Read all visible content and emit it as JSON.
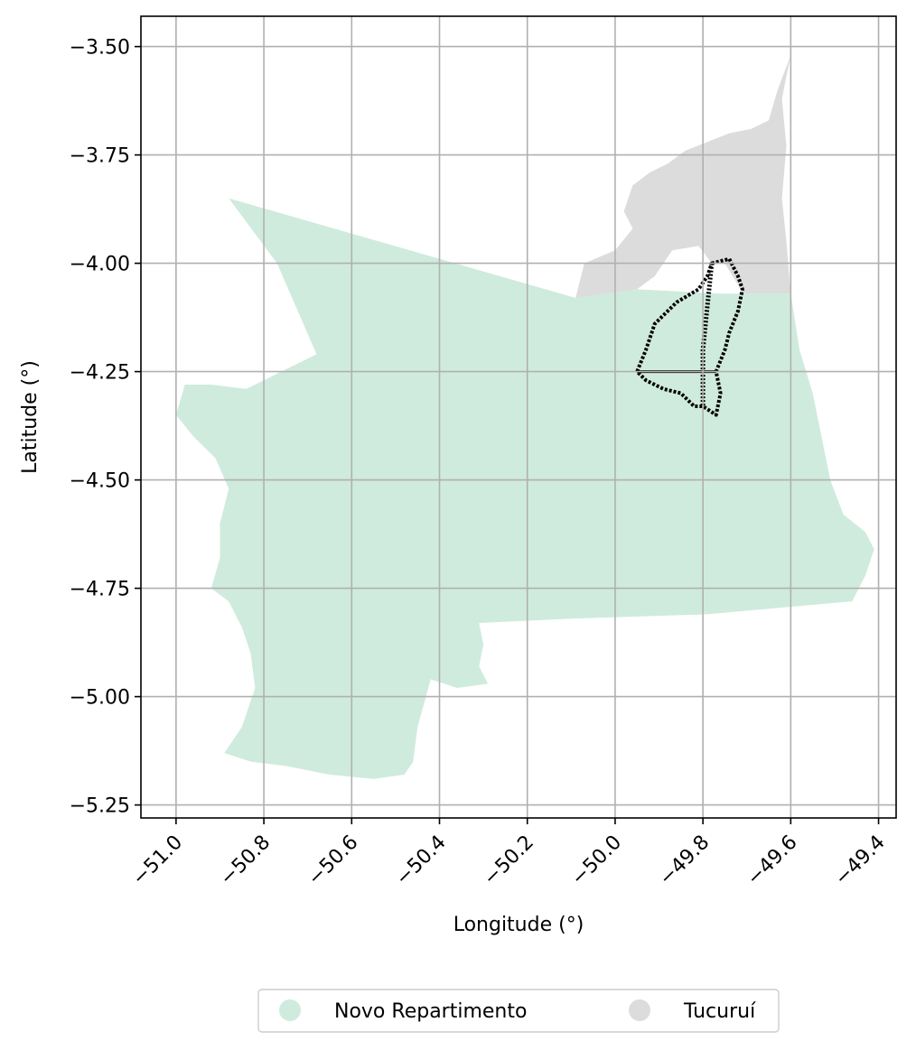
{
  "chart_data": {
    "type": "map",
    "xlabel": "Longitude (°)",
    "ylabel": "Latitude (°)",
    "xlim": [
      -51.08,
      -49.36
    ],
    "ylim": [
      -5.28,
      -3.43
    ],
    "x_ticks": [
      -51.0,
      -50.8,
      -50.6,
      -50.4,
      -50.2,
      -50.0,
      -49.8,
      -49.6,
      -49.4
    ],
    "x_tick_labels": [
      "−51.0",
      "−50.8",
      "−50.6",
      "−50.4",
      "−50.2",
      "−50.0",
      "−49.8",
      "−49.6",
      "−49.4"
    ],
    "y_ticks": [
      -3.5,
      -3.75,
      -4.0,
      -4.25,
      -4.5,
      -4.75,
      -5.0,
      -5.25
    ],
    "y_tick_labels": [
      "−3.50",
      "−3.75",
      "−4.00",
      "−4.25",
      "−4.50",
      "−4.75",
      "−5.00",
      "−5.25"
    ],
    "grid": true,
    "legend_position": "bottom-center",
    "regions": [
      {
        "name": "Novo Repartimento",
        "color": "#cfebdd",
        "polygon": [
          [
            -50.88,
            -3.85
          ],
          [
            -50.09,
            -4.08
          ],
          [
            -49.95,
            -4.06
          ],
          [
            -49.76,
            -4.07
          ],
          [
            -49.6,
            -4.07
          ],
          [
            -49.58,
            -4.2
          ],
          [
            -49.55,
            -4.3
          ],
          [
            -49.53,
            -4.4
          ],
          [
            -49.51,
            -4.5
          ],
          [
            -49.48,
            -4.58
          ],
          [
            -49.43,
            -4.62
          ],
          [
            -49.41,
            -4.66
          ],
          [
            -49.43,
            -4.72
          ],
          [
            -49.46,
            -4.78
          ],
          [
            -49.79,
            -4.81
          ],
          [
            -50.1,
            -4.82
          ],
          [
            -50.31,
            -4.83
          ],
          [
            -50.3,
            -4.88
          ],
          [
            -50.31,
            -4.93
          ],
          [
            -50.29,
            -4.97
          ],
          [
            -50.36,
            -4.98
          ],
          [
            -50.42,
            -4.96
          ],
          [
            -50.45,
            -5.07
          ],
          [
            -50.46,
            -5.15
          ],
          [
            -50.48,
            -5.18
          ],
          [
            -50.55,
            -5.19
          ],
          [
            -50.65,
            -5.18
          ],
          [
            -50.75,
            -5.16
          ],
          [
            -50.83,
            -5.15
          ],
          [
            -50.89,
            -5.13
          ],
          [
            -50.85,
            -5.07
          ],
          [
            -50.82,
            -4.98
          ],
          [
            -50.83,
            -4.9
          ],
          [
            -50.85,
            -4.84
          ],
          [
            -50.88,
            -4.78
          ],
          [
            -50.92,
            -4.75
          ],
          [
            -50.9,
            -4.68
          ],
          [
            -50.9,
            -4.6
          ],
          [
            -50.88,
            -4.52
          ],
          [
            -50.91,
            -4.45
          ],
          [
            -50.96,
            -4.4
          ],
          [
            -51.0,
            -4.35
          ],
          [
            -50.98,
            -4.28
          ],
          [
            -50.92,
            -4.28
          ],
          [
            -50.84,
            -4.29
          ],
          [
            -50.78,
            -4.26
          ],
          [
            -50.72,
            -4.23
          ],
          [
            -50.68,
            -4.21
          ],
          [
            -50.77,
            -4.0
          ]
        ]
      },
      {
        "name": "Tucuruí",
        "color": "#dcdcdc",
        "polygon": [
          [
            -49.6,
            -3.52
          ],
          [
            -49.63,
            -3.6
          ],
          [
            -49.65,
            -3.67
          ],
          [
            -49.69,
            -3.69
          ],
          [
            -49.74,
            -3.7
          ],
          [
            -49.77,
            -3.74
          ],
          [
            -49.82,
            -3.74
          ],
          [
            -49.88,
            -3.77
          ],
          [
            -49.92,
            -3.8
          ],
          [
            -49.92,
            -3.86
          ],
          [
            -49.88,
            -3.93
          ],
          [
            -49.87,
            -3.97
          ],
          [
            -49.81,
            -3.96
          ],
          [
            -49.78,
            -4.0
          ],
          [
            -49.75,
            -4.0
          ],
          [
            -49.72,
            -4.05
          ],
          [
            -49.71,
            -4.07
          ],
          [
            -49.6,
            -4.07
          ],
          [
            -49.61,
            -3.95
          ],
          [
            -49.62,
            -3.85
          ],
          [
            -49.61,
            -3.73
          ],
          [
            -49.62,
            -3.62
          ]
        ]
      },
      {
        "name": "",
        "color": "#dcdcdc",
        "polygon": [
          [
            -49.74,
            -3.7
          ],
          [
            -49.79,
            -3.72
          ],
          [
            -49.84,
            -3.74
          ],
          [
            -49.88,
            -3.77
          ],
          [
            -49.92,
            -3.79
          ],
          [
            -49.96,
            -3.82
          ],
          [
            -49.98,
            -3.88
          ],
          [
            -49.96,
            -3.92
          ],
          [
            -50.0,
            -3.97
          ],
          [
            -50.07,
            -4.0
          ],
          [
            -50.09,
            -4.08
          ],
          [
            -50.02,
            -4.07
          ],
          [
            -49.95,
            -4.06
          ],
          [
            -49.91,
            -4.03
          ],
          [
            -49.87,
            -3.97
          ]
        ]
      }
    ],
    "overlay_outline": {
      "color": "#000000",
      "polygon": [
        [
          -49.78,
          -4.0
        ],
        [
          -49.74,
          -3.99
        ],
        [
          -49.72,
          -4.03
        ],
        [
          -49.71,
          -4.06
        ],
        [
          -49.72,
          -4.11
        ],
        [
          -49.74,
          -4.16
        ],
        [
          -49.75,
          -4.2
        ],
        [
          -49.77,
          -4.25
        ],
        [
          -49.76,
          -4.3
        ],
        [
          -49.77,
          -4.35
        ],
        [
          -49.8,
          -4.33
        ],
        [
          -49.82,
          -4.33
        ],
        [
          -49.85,
          -4.3
        ],
        [
          -49.89,
          -4.29
        ],
        [
          -49.93,
          -4.27
        ],
        [
          -49.95,
          -4.25
        ],
        [
          -49.93,
          -4.2
        ],
        [
          -49.91,
          -4.14
        ],
        [
          -49.86,
          -4.09
        ],
        [
          -49.81,
          -4.06
        ],
        [
          -49.79,
          -4.03
        ]
      ]
    },
    "legend": [
      "Novo Repartimento",
      "Tucuruí"
    ]
  }
}
